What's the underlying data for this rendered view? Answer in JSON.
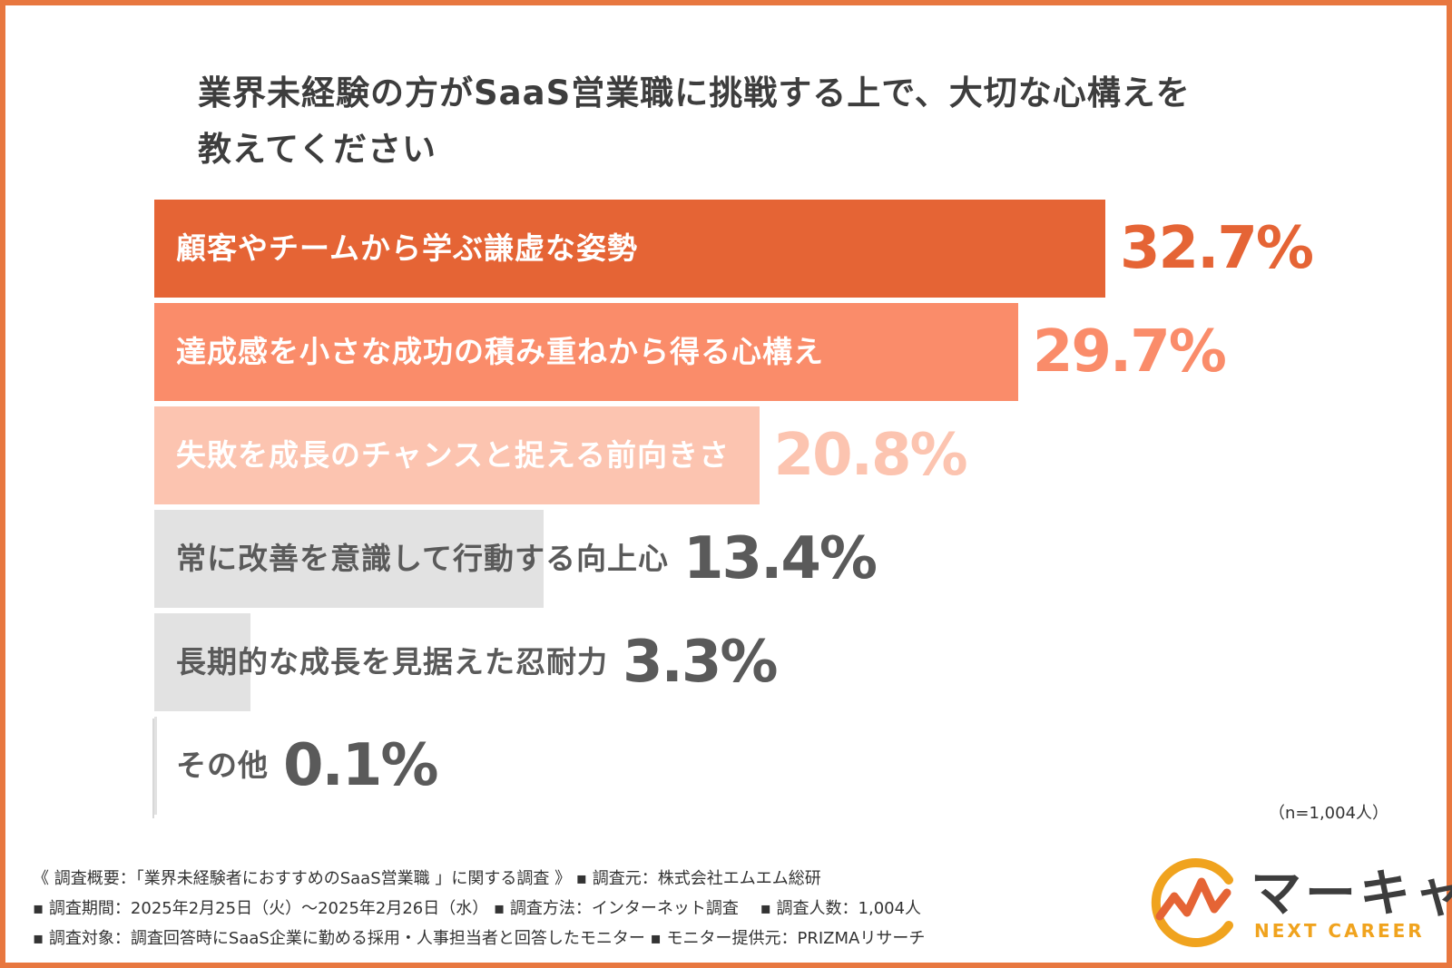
{
  "chart_data": {
    "type": "bar",
    "orientation": "horizontal",
    "title": "業界未経験の方がSaaS営業職に挑戦する上で、大切な心構えを教えてください",
    "title_lines": [
      "業界未経験の方がSaaS営業職に挑戦する上で、大切な心構えを",
      "教えてください"
    ],
    "categories": [
      "顧客やチームから学ぶ謙虚な姿勢",
      "達成感を小さな成功の積み重ねから得る心構え",
      "失敗を成長のチャンスと捉える前向きさ",
      "常に改善を意識して行動する向上心",
      "長期的な成長を見据えた忍耐力",
      "その他"
    ],
    "values": [
      32.7,
      29.7,
      20.8,
      13.4,
      3.3,
      0.1
    ],
    "value_labels": [
      "32.7%",
      "29.7%",
      "20.8%",
      "13.4%",
      "3.3%",
      "0.1%"
    ],
    "unit": "%",
    "xlim": [
      0,
      32.7
    ],
    "bar_colors": [
      "#e56435",
      "#fa8c6a",
      "#fcc4b0",
      "#e2e2e2",
      "#e2e2e2",
      "#e2e2e2"
    ],
    "label_colors": [
      "#ffffff",
      "#ffffff",
      "#ffffff",
      "#5a5a5a",
      "#5a5a5a",
      "#5a5a5a"
    ],
    "value_colors": [
      "#e56435",
      "#fa8c6a",
      "#fcc4b0",
      "#5a5a5a",
      "#5a5a5a",
      "#5a5a5a"
    ],
    "sample_note": "（n=1,004人）"
  },
  "footnotes": [
    "《 調査概要：「業界未経験者におすすめのSaaS営業職 」に関する調査 》 ▪ 調査元：株式会社エムエム総研",
    "▪ 調査期間：2025年2月25日（火）〜2025年2月26日（水） ▪ 調査方法：インターネット調査　 ▪ 調査人数：1,004人",
    "▪ 調査対象：調査回答時にSaaS企業に勤める採用・人事担当者と回答したモニター ▪ モニター提供元：PRIZMAリサーチ"
  ],
  "logo": {
    "name": "マーキャリ",
    "sub": "NEXT CAREER",
    "colors": {
      "arc": "#f0a31e",
      "wave": "#e56435"
    }
  },
  "colors": {
    "frame": "#e8773f"
  }
}
